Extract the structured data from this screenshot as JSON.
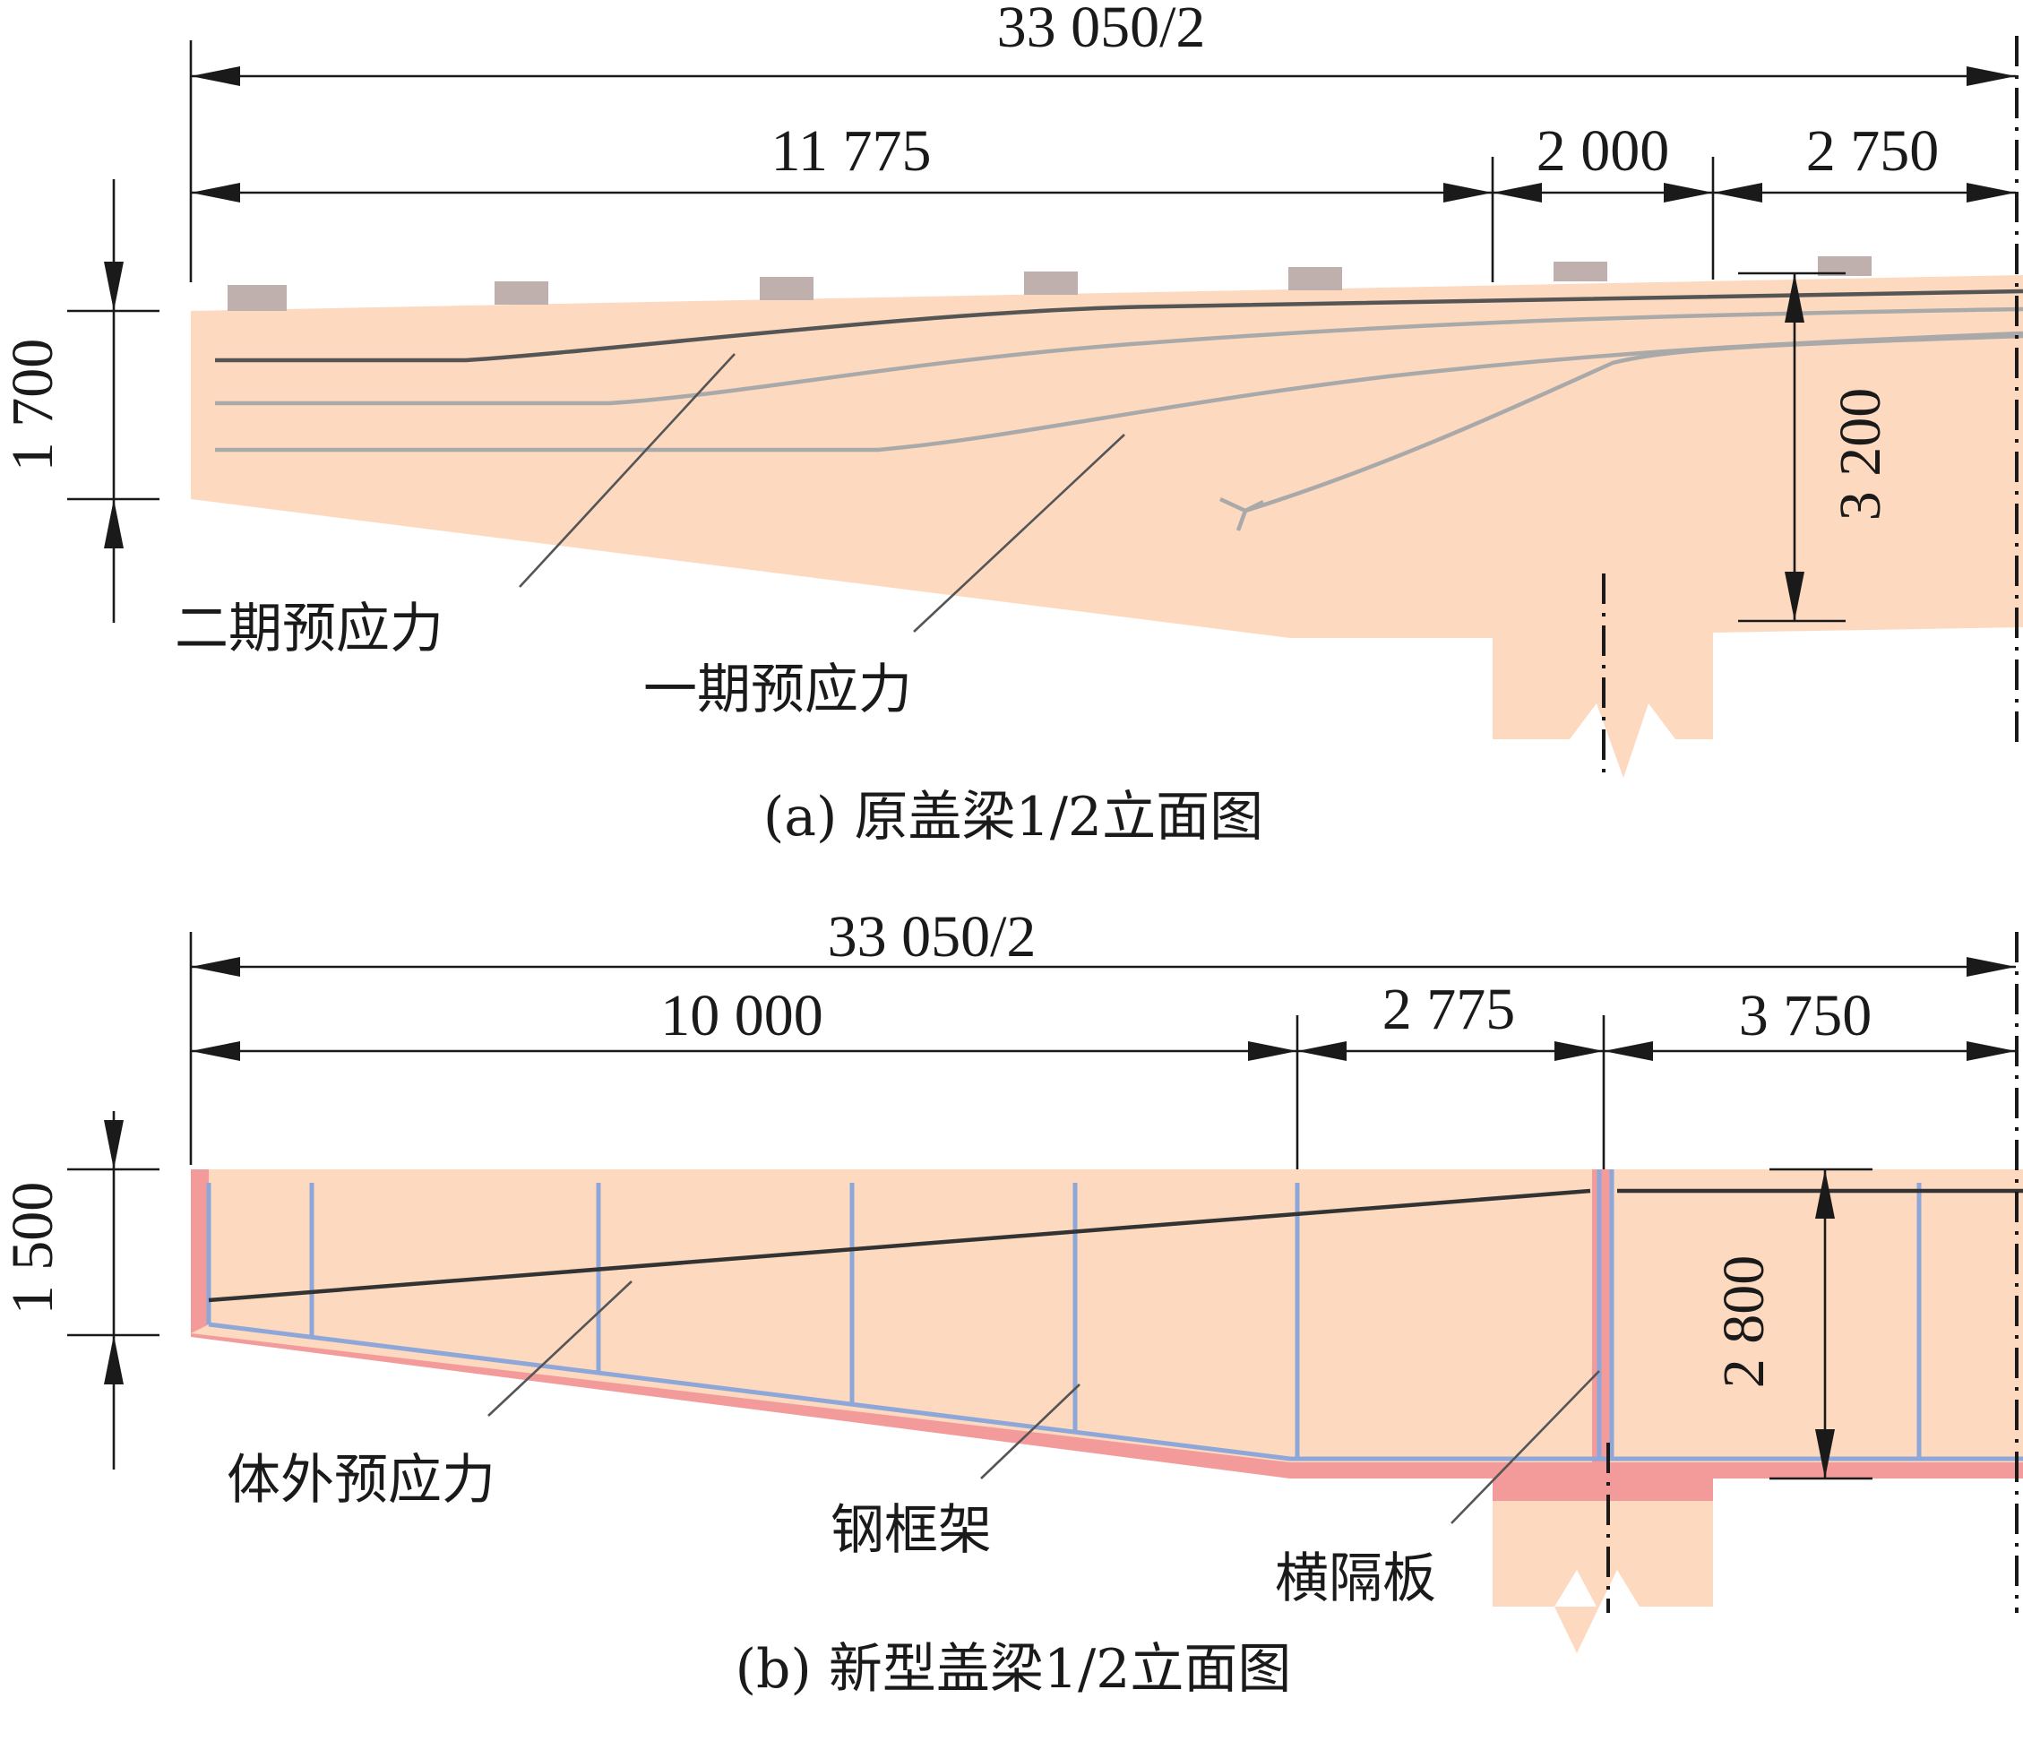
{
  "colors": {
    "concrete": "#fdd9c0",
    "bearing_pad": "#bfb0ad",
    "tendon_stage2": "#555555",
    "tendon_stage1": "#a9a9a9",
    "steel_frame": "#8ea7d9",
    "steel_plate_red": "#f39a9a",
    "external_tendon": "#333333",
    "dimension_line": "#1a1a1a"
  },
  "figure_a": {
    "caption": "(a) 原盖梁1/2立面图",
    "dims": {
      "total": "33 050/2",
      "seg1": "11 775",
      "seg2": "2 000",
      "seg3": "2 750",
      "end_height": "1 700",
      "mid_height": "3 200"
    },
    "labels": {
      "stage2_prestress": "二期预应力",
      "stage1_prestress": "一期预应力"
    }
  },
  "figure_b": {
    "caption": "(b) 新型盖梁1/2立面图",
    "dims": {
      "total": "33 050/2",
      "seg1": "10 000",
      "seg2": "2 775",
      "seg3": "3 750",
      "end_height": "1 500",
      "mid_height": "2 800"
    },
    "labels": {
      "external_prestress": "体外预应力",
      "steel_frame": "钢框架",
      "diaphragm": "横隔板"
    }
  }
}
